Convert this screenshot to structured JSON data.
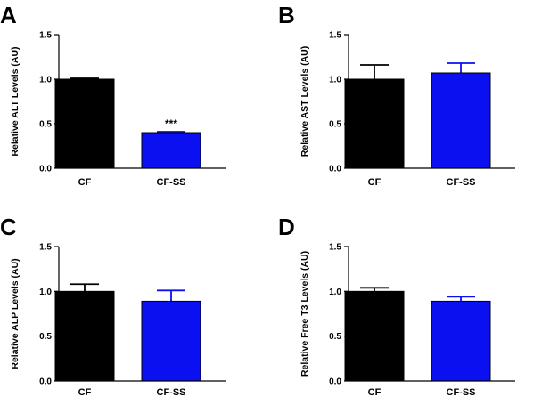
{
  "colors": {
    "CF": "#000000",
    "CF-SS": "#0a10f0",
    "axis": "#000000"
  },
  "chart_data": [
    {
      "panel": "A",
      "type": "bar",
      "ylabel": "Relative ALT Levels (AU)",
      "categories": [
        "CF",
        "CF-SS"
      ],
      "values": [
        1.0,
        0.4
      ],
      "errors": [
        0.01,
        0.01
      ],
      "ylim": [
        0,
        1.5
      ],
      "yticks": [
        "0.0",
        "0.5",
        "1.0",
        "1.5"
      ],
      "annotations": [
        {
          "category": "CF-SS",
          "text": "***"
        }
      ]
    },
    {
      "panel": "B",
      "type": "bar",
      "ylabel": "Relative AST Levels (AU)",
      "categories": [
        "CF",
        "CF-SS"
      ],
      "values": [
        1.0,
        1.07
      ],
      "errors": [
        0.16,
        0.11
      ],
      "ylim": [
        0,
        1.5
      ],
      "yticks": [
        "0.0",
        "0.5",
        "1.0",
        "1.5"
      ],
      "annotations": []
    },
    {
      "panel": "C",
      "type": "bar",
      "ylabel": "Relative ALP Levels (AU)",
      "categories": [
        "CF",
        "CF-SS"
      ],
      "values": [
        1.0,
        0.89
      ],
      "errors": [
        0.08,
        0.12
      ],
      "ylim": [
        0,
        1.5
      ],
      "yticks": [
        "0.0",
        "0.5",
        "1.0",
        "1.5"
      ],
      "annotations": []
    },
    {
      "panel": "D",
      "type": "bar",
      "ylabel": "Relative Free T3 Levels (AU)",
      "categories": [
        "CF",
        "CF-SS"
      ],
      "values": [
        1.0,
        0.89
      ],
      "errors": [
        0.04,
        0.05
      ],
      "ylim": [
        0,
        1.5
      ],
      "yticks": [
        "0.0",
        "0.5",
        "1.0",
        "1.5"
      ],
      "annotations": []
    }
  ]
}
